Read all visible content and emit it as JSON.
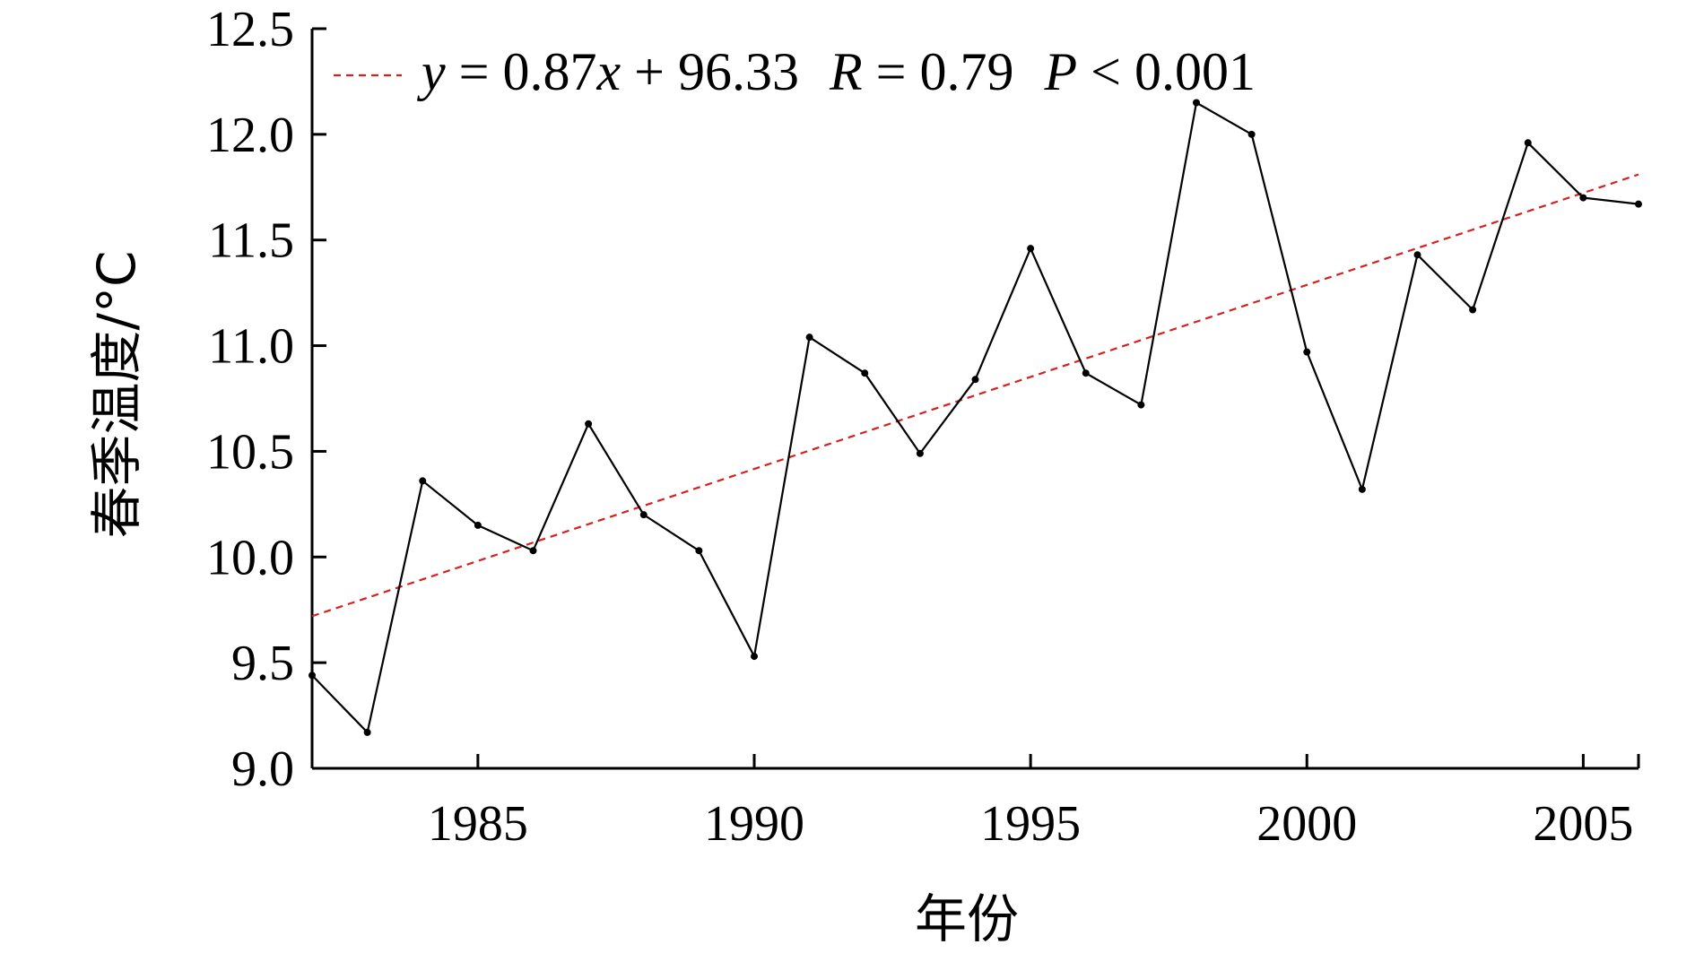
{
  "chart_data": {
    "type": "line",
    "xlabel": "年份",
    "ylabel": "春季温度/°C",
    "xlim": [
      1982,
      2006
    ],
    "ylim": [
      9.0,
      12.5
    ],
    "xticks": [
      1985,
      1990,
      1995,
      2000,
      2005
    ],
    "yticks": [
      "9.0",
      "9.5",
      "10.0",
      "10.5",
      "11.0",
      "11.5",
      "12.0",
      "12.5"
    ],
    "grid": false,
    "legend_position": "top-left",
    "series": [
      {
        "color": "#000000",
        "marker": "dot",
        "x": [
          1982,
          1983,
          1984,
          1985,
          1986,
          1987,
          1988,
          1989,
          1990,
          1991,
          1992,
          1993,
          1994,
          1995,
          1996,
          1997,
          1998,
          1999,
          2000,
          2001,
          2002,
          2003,
          2004,
          2005,
          2006
        ],
        "y": [
          9.44,
          9.17,
          10.36,
          10.15,
          10.03,
          10.63,
          10.2,
          10.03,
          9.53,
          11.04,
          10.87,
          10.49,
          10.84,
          11.46,
          10.87,
          10.72,
          12.15,
          12.0,
          10.97,
          10.32,
          11.43,
          11.17,
          11.96,
          11.7,
          11.67
        ]
      }
    ],
    "trendline": {
      "color": "#d62020",
      "style": "dashed",
      "x": [
        1982,
        2006
      ],
      "y": [
        9.72,
        11.81
      ]
    },
    "annotation": {
      "lhs": "y",
      "eq1": " = 0.87",
      "xvar": "x",
      "eq2": " + 96.33",
      "r_var": "R",
      "r_val": " = 0.79",
      "p_var": "P",
      "p_val": " < 0.001"
    }
  }
}
